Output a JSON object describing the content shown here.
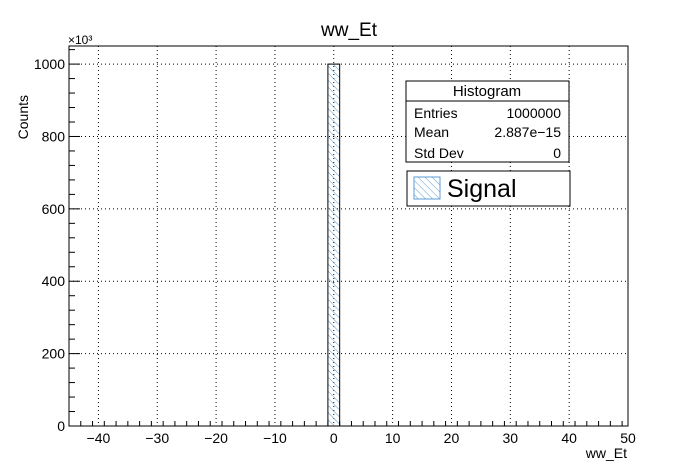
{
  "chart_data": {
    "type": "bar",
    "title": "ww_Et",
    "xlabel": "ww_Et",
    "ylabel": "Counts",
    "y_multiplier": "×10³",
    "xlim": [
      -45,
      50
    ],
    "ylim": [
      0,
      1050
    ],
    "x_ticks": [
      "−40",
      "−30",
      "−20",
      "−10",
      "0",
      "10",
      "20",
      "30",
      "40",
      "50"
    ],
    "x_tick_values": [
      -40,
      -30,
      -20,
      -10,
      0,
      10,
      20,
      30,
      40,
      50
    ],
    "y_ticks": [
      "0",
      "200",
      "400",
      "600",
      "800",
      "1000"
    ],
    "y_tick_values": [
      0,
      200,
      400,
      600,
      800,
      1000
    ],
    "grid": true,
    "series": [
      {
        "name": "Signal",
        "bins": [
          {
            "x0": -1,
            "x1": 1,
            "value": 1000
          }
        ],
        "fill": "hatched",
        "color": "#5b9bd5"
      }
    ],
    "stats_box": {
      "title": "Histogram",
      "rows": [
        {
          "label": "Entries",
          "value": "1000000"
        },
        {
          "label": "Mean",
          "value": "2.887e−15"
        },
        {
          "label": "Std Dev",
          "value": "0"
        }
      ]
    },
    "legend": {
      "position": "top-right",
      "label": "Signal"
    }
  }
}
